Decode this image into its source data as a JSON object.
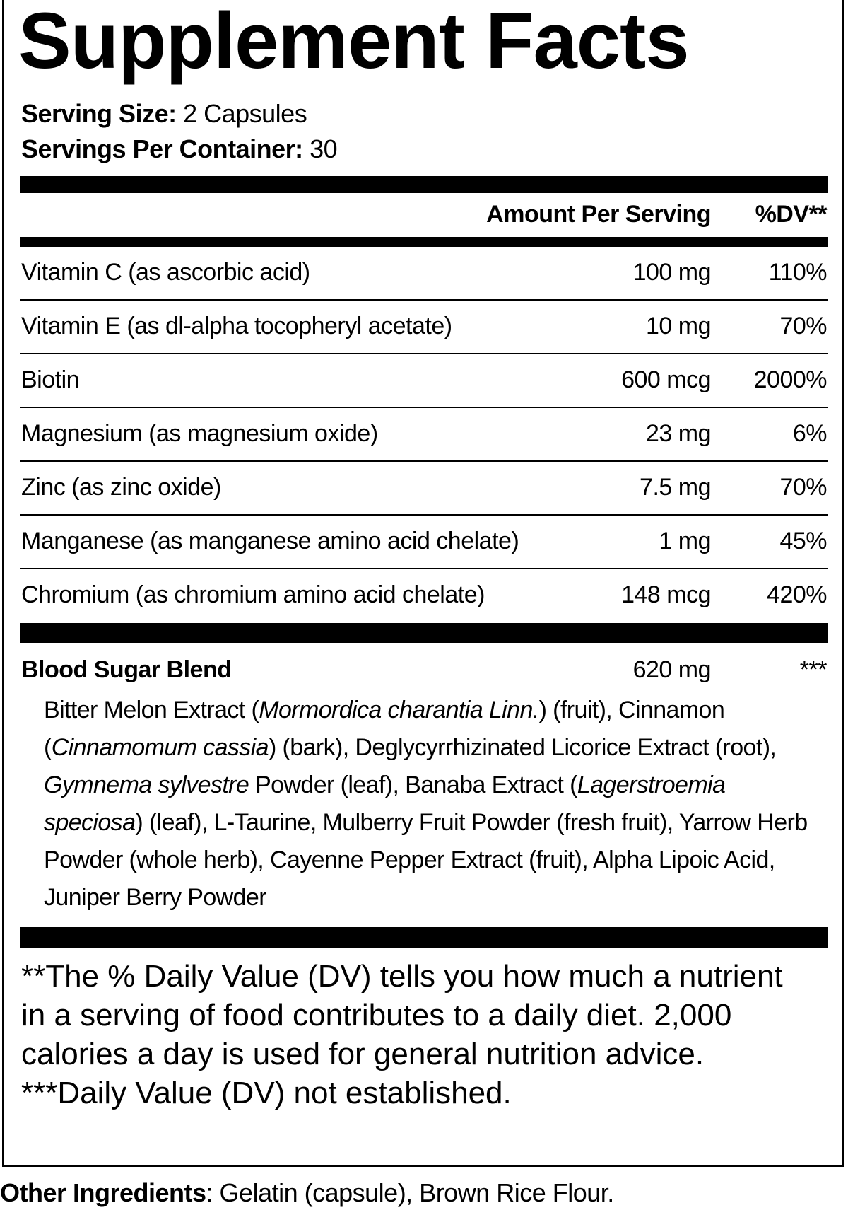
{
  "title": "Supplement Facts",
  "serving_size": {
    "label": "Serving Size:",
    "value": "2 Capsules"
  },
  "servings_per_container": {
    "label": "Servings Per Container:",
    "value": "30"
  },
  "table": {
    "header": [
      "Amount Per Serving",
      "%DV**"
    ],
    "rows": [
      [
        "Vitamin C (as ascorbic acid)",
        "100 mg",
        "110%"
      ],
      [
        "Vitamin E (as dl-alpha tocopheryl acetate)",
        "10 mg",
        "70%"
      ],
      [
        "Biotin",
        "600 mcg",
        "2000%"
      ],
      [
        "Magnesium (as magnesium oxide)",
        "23 mg",
        "6%"
      ],
      [
        "Zinc (as zinc oxide)",
        "7.5 mg",
        "70%"
      ],
      [
        "Manganese (as manganese amino acid chelate)",
        "1 mg",
        "45%"
      ],
      [
        "Chromium (as chromium amino acid chelate)",
        "148 mcg",
        "420%"
      ]
    ]
  },
  "blend": {
    "name": "Blood Sugar Blend",
    "amount": "620 mg",
    "dv": "***",
    "ingredients": [
      {
        "text": "Bitter Melon Extract ("
      },
      {
        "text": "Mormordica charantia Linn.",
        "italic": true
      },
      {
        "text": ") (fruit), Cinnamon ("
      },
      {
        "text": "Cinnamomum cassia",
        "italic": true
      },
      {
        "text": ") (bark), Deglycyrrhizinated Licorice Extract (root), "
      },
      {
        "text": "Gymnema sylvestre",
        "italic": true
      },
      {
        "text": " Powder (leaf), Banaba Extract ("
      },
      {
        "text": "Lagerstroemia speciosa",
        "italic": true
      },
      {
        "text": ") (leaf), L-Taurine, Mulberry Fruit Powder (fresh fruit), Yarrow Herb Powder (whole herb), Cayenne Pepper Extract (fruit), Alpha Lipoic Acid, Juniper Berry Powder"
      }
    ]
  },
  "footnotes": [
    "**The % Daily Value (DV) tells you how much a nutrient in a serving of food contributes to a daily diet. 2,000 calories a day is used for general nutrition advice.",
    "***Daily Value (DV) not established."
  ],
  "other_ingredients": {
    "label": "Other Ingredients",
    "text": ": Gelatin (capsule), Brown Rice Flour."
  }
}
